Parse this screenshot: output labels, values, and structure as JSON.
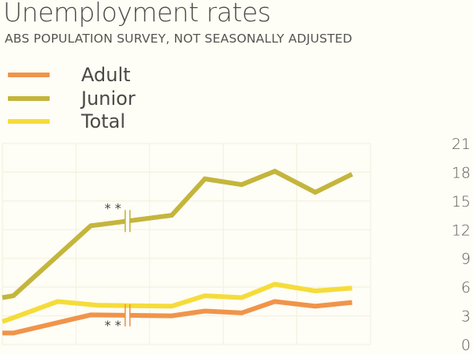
{
  "chart_data": {
    "type": "line",
    "title": "Unemployment rates",
    "subtitle": "ABS POPULATION SURVEY, NOT SEASONALLY ADJUSTED",
    "xlabel": "",
    "ylabel": "",
    "xlim": [
      0,
      5
    ],
    "ylim": [
      0,
      21
    ],
    "yticks": [
      0,
      3,
      6,
      9,
      12,
      15,
      18,
      21
    ],
    "y_axis_side": "right",
    "grid": true,
    "legend_placement": "top-left",
    "break_marker": "**",
    "break_x": 1.7,
    "series": [
      {
        "name": "Adult",
        "color": "#f0944a",
        "x": [
          0,
          0.15,
          1.2,
          2.3,
          2.75,
          3.25,
          3.7,
          4.25,
          4.75
        ],
        "values": [
          1.2,
          1.2,
          3.1,
          3.0,
          3.5,
          3.3,
          4.5,
          4.0,
          4.4
        ]
      },
      {
        "name": "Junior",
        "color": "#c4b53c",
        "x": [
          0,
          0.15,
          1.2,
          2.3,
          2.75,
          3.25,
          3.7,
          4.25,
          4.75
        ],
        "values": [
          4.9,
          5.1,
          12.4,
          13.5,
          17.3,
          16.7,
          18.1,
          15.9,
          17.8
        ]
      },
      {
        "name": "Total",
        "color": "#f5dc3a",
        "x": [
          0,
          0.15,
          0.75,
          1.3,
          2.3,
          2.75,
          3.25,
          3.7,
          4.25,
          4.75
        ],
        "values": [
          2.4,
          2.8,
          4.5,
          4.1,
          4.0,
          5.1,
          4.9,
          6.3,
          5.6,
          5.9
        ]
      }
    ]
  }
}
